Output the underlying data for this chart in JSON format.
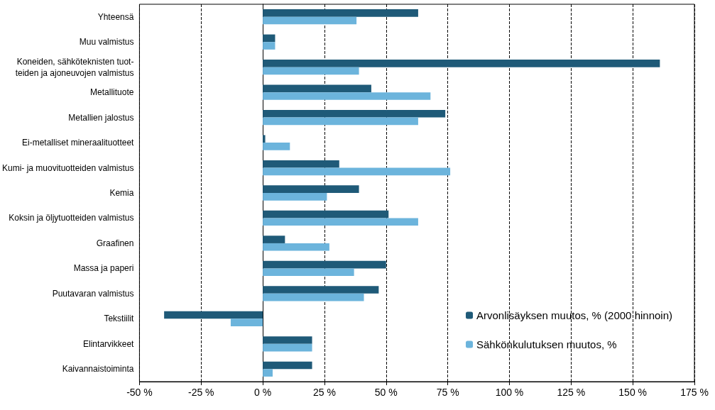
{
  "chart_data": {
    "type": "bar",
    "orientation": "horizontal",
    "categories": [
      "Yhteensä",
      "Muu valmistus",
      "Koneiden, sähköteknisten tuot-\nteiden ja ajoneuvojen valmistus",
      "Metallituote",
      "Metallien jalostus",
      "Ei-metalliset mineraalituotteet",
      "Kumi- ja muovituotteiden valmistus",
      "Kemia",
      "Koksin ja öljytuotteiden valmistus",
      "Graafinen",
      "Massa ja paperi",
      "Puutavaran valmistus",
      "Tekstiilit",
      "Elintarvikkeet",
      "Kaivannaistoiminta"
    ],
    "series": [
      {
        "name": "Arvonlisäyksen muutos, % (2000 hinnoin)",
        "color": "#1f5a78",
        "values": [
          63,
          5,
          161,
          44,
          74,
          1,
          31,
          39,
          51,
          9,
          50,
          47,
          -40,
          20,
          20
        ]
      },
      {
        "name": "Sähkönkulutuksen muutos, %",
        "color": "#6cb4dc",
        "values": [
          38,
          5,
          39,
          68,
          63,
          11,
          76,
          26,
          63,
          27,
          37,
          41,
          -13,
          20,
          4
        ]
      }
    ],
    "xlim": [
      -50,
      175
    ],
    "xticks": [
      {
        "value": -50,
        "label": "-50 %"
      },
      {
        "value": -25,
        "label": "-25 %"
      },
      {
        "value": 0,
        "label": "0 %"
      },
      {
        "value": 25,
        "label": "25 %"
      },
      {
        "value": 50,
        "label": "50 %"
      },
      {
        "value": 75,
        "label": "75 %"
      },
      {
        "value": 100,
        "label": "100 %"
      },
      {
        "value": 125,
        "label": "125 %"
      },
      {
        "value": 150,
        "label": "150 %"
      },
      {
        "value": 175,
        "label": "175 %"
      }
    ],
    "grid": "x",
    "legend": "bottom right"
  }
}
